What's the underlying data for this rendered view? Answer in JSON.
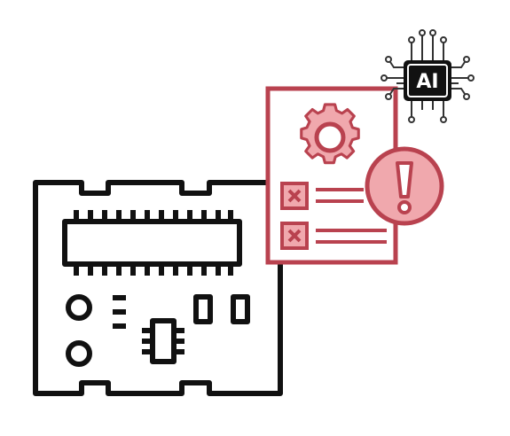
{
  "ai_chip": {
    "label": "AI",
    "icon": "ai-chip-icon"
  },
  "icons": {
    "circuit_board": "circuit-board-icon",
    "error_report": "error-report-icon",
    "gear": "gear-icon",
    "warning": "exclamation-warning-icon"
  },
  "colors": {
    "outline": "#111111",
    "accent": "#b9424f",
    "accent_light": "#f0a8ad",
    "background": "#ffffff"
  }
}
